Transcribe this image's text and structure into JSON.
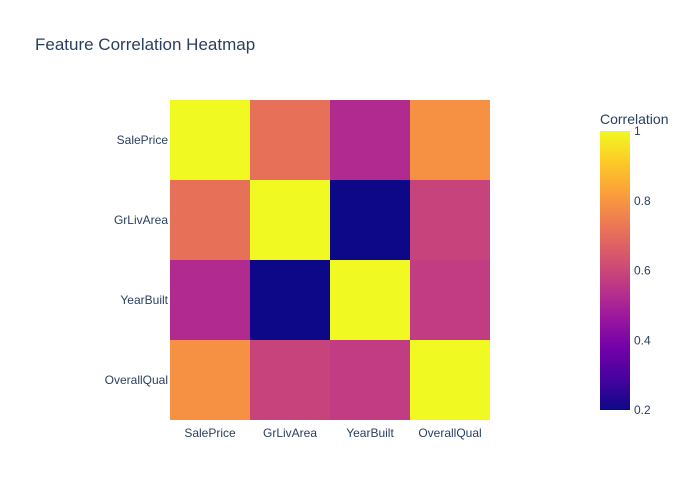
{
  "chart_data": {
    "type": "heatmap",
    "title": "Feature Correlation Heatmap",
    "x": [
      "SalePrice",
      "GrLivArea",
      "YearBuilt",
      "OverallQual"
    ],
    "y": [
      "SalePrice",
      "GrLivArea",
      "YearBuilt",
      "OverallQual"
    ],
    "z": [
      [
        1.0,
        0.71,
        0.52,
        0.79
      ],
      [
        0.71,
        1.0,
        0.2,
        0.59
      ],
      [
        0.52,
        0.2,
        1.0,
        0.57
      ],
      [
        0.79,
        0.59,
        0.57,
        1.0
      ]
    ],
    "colorbar": {
      "title": "Correlation",
      "range": [
        0.2,
        1.0
      ],
      "ticks": [
        0.2,
        0.4,
        0.6,
        0.8,
        1
      ],
      "tick_labels": [
        "0.2",
        "0.4",
        "0.6",
        "0.8",
        "1"
      ]
    },
    "colorscale": [
      [
        0.0,
        "#0d0887"
      ],
      [
        0.1111,
        "#46039f"
      ],
      [
        0.2222,
        "#7201a8"
      ],
      [
        0.3333,
        "#9c179e"
      ],
      [
        0.4444,
        "#bd3786"
      ],
      [
        0.5556,
        "#d8576b"
      ],
      [
        0.6667,
        "#ed7953"
      ],
      [
        0.7778,
        "#fb9f3a"
      ],
      [
        0.8889,
        "#fdca26"
      ],
      [
        1.0,
        "#f0f921"
      ]
    ]
  }
}
